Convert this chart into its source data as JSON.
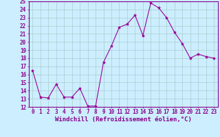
{
  "x": [
    0,
    1,
    2,
    3,
    4,
    5,
    6,
    7,
    8,
    9,
    10,
    11,
    12,
    13,
    14,
    15,
    16,
    17,
    18,
    19,
    20,
    21,
    22,
    23
  ],
  "y": [
    16.5,
    13.2,
    13.1,
    14.8,
    13.2,
    13.2,
    14.3,
    12.1,
    12.1,
    17.5,
    19.5,
    21.8,
    22.2,
    23.3,
    20.8,
    24.8,
    24.2,
    23.0,
    21.2,
    19.8,
    18.0,
    18.5,
    18.2,
    18.0
  ],
  "line_color": "#990099",
  "marker": "*",
  "marker_size": 3,
  "bg_color": "#cceeff",
  "grid_color": "#aacccc",
  "xlabel": "Windchill (Refroidissement éolien,°C)",
  "ylim": [
    12,
    25
  ],
  "xlim": [
    -0.5,
    23.5
  ],
  "yticks": [
    12,
    13,
    14,
    15,
    16,
    17,
    18,
    19,
    20,
    21,
    22,
    23,
    24,
    25
  ],
  "xticks": [
    0,
    1,
    2,
    3,
    4,
    5,
    6,
    7,
    8,
    9,
    10,
    11,
    12,
    13,
    14,
    15,
    16,
    17,
    18,
    19,
    20,
    21,
    22,
    23
  ],
  "tick_label_fontsize": 5.5,
  "xlabel_fontsize": 6.5,
  "tick_color": "#880088",
  "border_color": "#880088"
}
